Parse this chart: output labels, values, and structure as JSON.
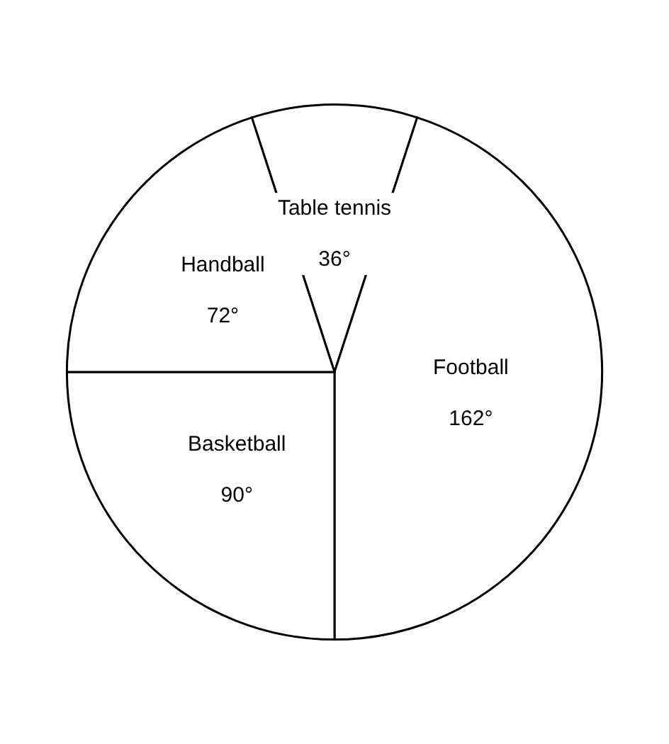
{
  "chart_data": {
    "type": "pie",
    "categories": [
      "Table tennis",
      "Football",
      "Basketball",
      "Handball"
    ],
    "values": [
      36,
      162,
      90,
      72
    ],
    "colors": [
      "#ffffff",
      "#ffffff",
      "#ffffff",
      "#ffffff"
    ],
    "value_labels": [
      "36°",
      "162°",
      "90°",
      "72°"
    ]
  }
}
